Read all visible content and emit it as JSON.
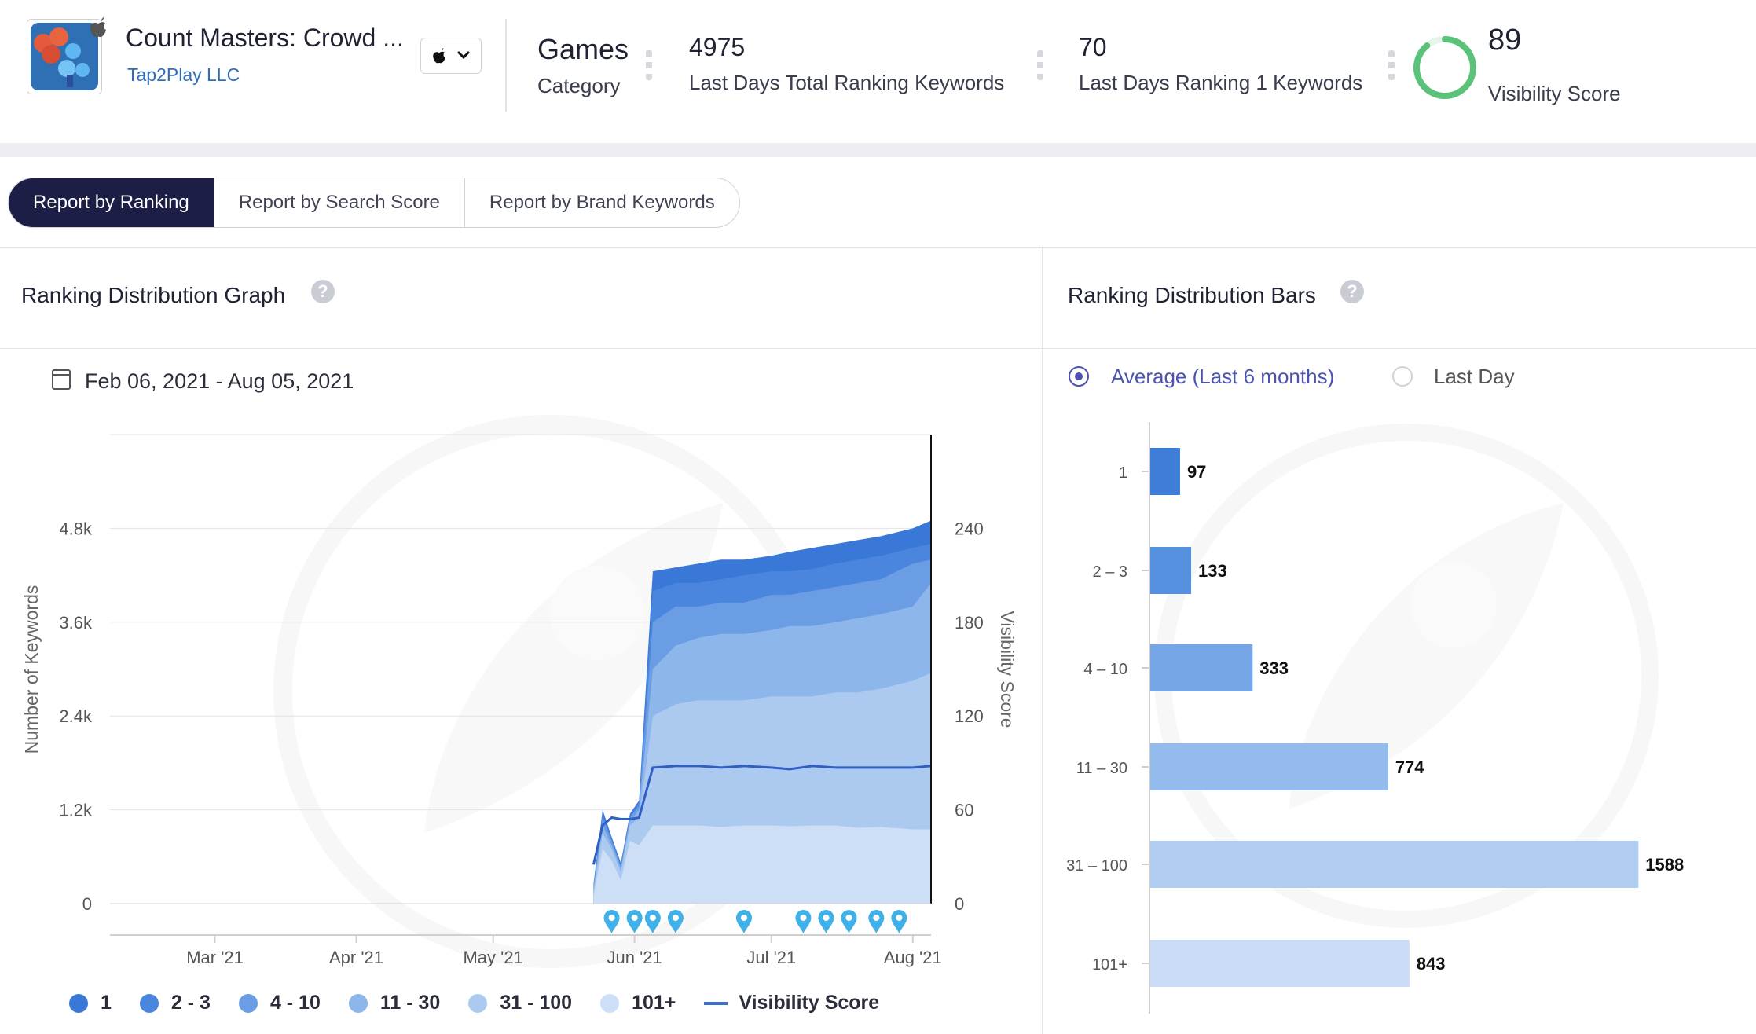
{
  "app": {
    "title": "Count Masters: Crowd ...",
    "developer": "Tap2Play LLC",
    "icon": "app-icon",
    "store_icon": "apple-icon"
  },
  "metrics": {
    "category_value": "Games",
    "category_label": "Category",
    "total_keywords_value": "4975",
    "total_keywords_label": "Last Days Total Ranking Keywords",
    "rank1_value": "70",
    "rank1_label": "Last Days Ranking 1 Keywords",
    "visibility_value": "89",
    "visibility_label": "Visibility Score",
    "visibility_ring_fraction": 0.89,
    "visibility_color": "#5bc27a"
  },
  "tabs": [
    {
      "label": "Report by Ranking",
      "active": true
    },
    {
      "label": "Report by Search Score",
      "active": false
    },
    {
      "label": "Report by Brand Keywords",
      "active": false
    }
  ],
  "graph_panel": {
    "title": "Ranking Distribution Graph",
    "date_range": "Feb 06, 2021 - Aug 05, 2021"
  },
  "bars_panel": {
    "title": "Ranking Distribution Bars",
    "options": [
      {
        "label": "Average (Last 6 months)",
        "selected": true
      },
      {
        "label": "Last Day",
        "selected": false
      }
    ]
  },
  "chart_data": [
    {
      "type": "area",
      "ylabel": "Number of Keywords",
      "y2label": "Visibility Score",
      "ylim": [
        0,
        6000
      ],
      "y2lim": [
        0,
        300
      ],
      "y_ticks": [
        "0",
        "1.2k",
        "2.4k",
        "3.6k",
        "4.8k"
      ],
      "y2_ticks": [
        "0",
        "60",
        "120",
        "180",
        "240"
      ],
      "x_ticks": [
        "Mar '21",
        "Apr '21",
        "May '21",
        "Jun '21",
        "Jul '21",
        "Aug '21"
      ],
      "x": [
        "May 23",
        "May 25",
        "May 27",
        "May 29",
        "May 31",
        "Jun 02",
        "Jun 05",
        "Jun 10",
        "Jun 15",
        "Jun 20",
        "Jun 25",
        "Jul 01",
        "Jul 05",
        "Jul 10",
        "Jul 15",
        "Jul 20",
        "Jul 25",
        "Aug 01",
        "Aug 05"
      ],
      "stack_totals": {
        "101+": [
          100,
          700,
          550,
          300,
          800,
          750,
          1000,
          1000,
          1000,
          980,
          1000,
          1000,
          990,
          1000,
          1000,
          970,
          980,
          950,
          950
        ],
        "31 - 100": [
          150,
          900,
          700,
          400,
          1000,
          1100,
          2400,
          2550,
          2600,
          2600,
          2600,
          2650,
          2650,
          2650,
          2700,
          2700,
          2750,
          2850,
          2950
        ],
        "11 - 30": [
          200,
          1000,
          750,
          450,
          1050,
          1200,
          3000,
          3300,
          3400,
          3450,
          3450,
          3500,
          3550,
          3550,
          3600,
          3650,
          3700,
          3800,
          4100
        ],
        "4 - 10": [
          220,
          1100,
          800,
          480,
          1100,
          1250,
          3600,
          3800,
          3800,
          3850,
          3850,
          3950,
          3950,
          4000,
          4050,
          4100,
          4150,
          4350,
          4400
        ],
        "2 - 3": [
          240,
          1150,
          830,
          500,
          1130,
          1300,
          4000,
          4100,
          4100,
          4150,
          4200,
          4250,
          4250,
          4280,
          4350,
          4400,
          4450,
          4550,
          4600
        ],
        "1": [
          250,
          1200,
          850,
          520,
          1150,
          1320,
          4250,
          4300,
          4350,
          4400,
          4400,
          4450,
          4500,
          4550,
          4600,
          4650,
          4700,
          4800,
          4900
        ]
      },
      "visibility_score": [
        25,
        50,
        55,
        54,
        54,
        55,
        87,
        88,
        88,
        87,
        88,
        87,
        86,
        88,
        87,
        87,
        87,
        87,
        88
      ],
      "event_markers": [
        "May 27",
        "Jun 01",
        "Jun 05",
        "Jun 10",
        "Jun 25",
        "Jul 08",
        "Jul 13",
        "Jul 18",
        "Jul 24",
        "Jul 29"
      ],
      "series": [
        {
          "name": "1",
          "color": "#3a78d8"
        },
        {
          "name": "2 - 3",
          "color": "#4a86dd"
        },
        {
          "name": "4 - 10",
          "color": "#6a9de3"
        },
        {
          "name": "11 - 30",
          "color": "#8db6ea"
        },
        {
          "name": "31 - 100",
          "color": "#acc9f0"
        },
        {
          "name": "101+",
          "color": "#cddff7"
        },
        {
          "name": "Visibility Score",
          "color": "#3a6fd1"
        }
      ],
      "grid": true
    },
    {
      "type": "bar",
      "orientation": "horizontal",
      "categories": [
        "1",
        "2 – 3",
        "4 – 10",
        "11 – 30",
        "31 – 100",
        "101+"
      ],
      "values": [
        97,
        133,
        333,
        774,
        1588,
        843
      ],
      "colors": [
        "#3e7ed9",
        "#5590e0",
        "#76a6e5",
        "#93bbeb",
        "#b0ccf0",
        "#cadcf6"
      ],
      "xlim": [
        0,
        1600
      ]
    }
  ]
}
